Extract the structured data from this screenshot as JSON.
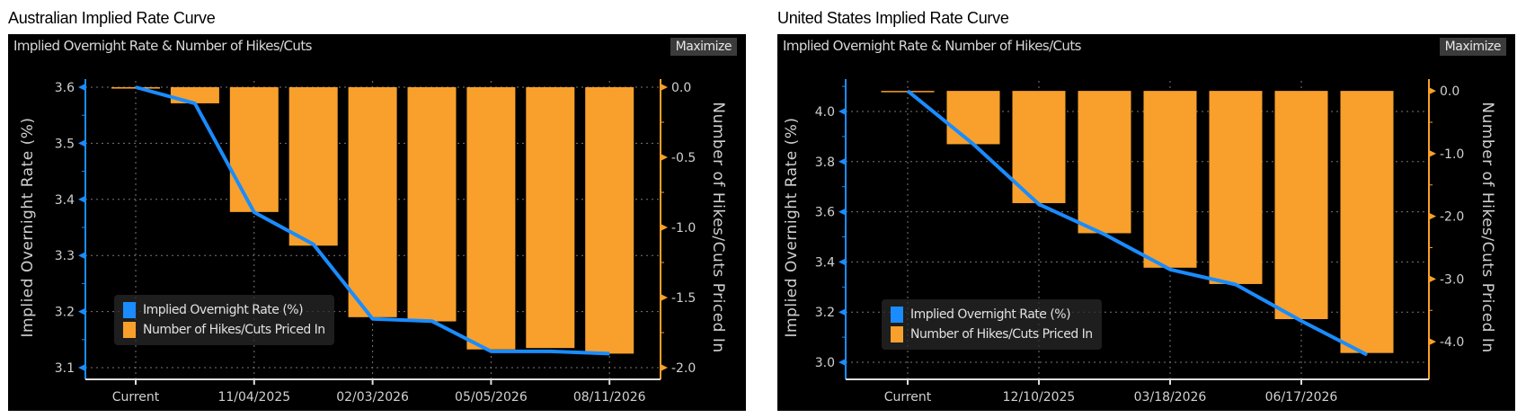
{
  "chart_data": [
    {
      "type": "bar+line",
      "title": "Australian Implied Rate Curve",
      "subtitle": "Implied Overnight Rate & Number of Hikes/Cuts",
      "maximize_label": "Maximize",
      "ylabel": "Implied Overnight Rate (%)",
      "y2label": "Number of Hikes/Cuts Priced In",
      "ylim": [
        3.1,
        3.6
      ],
      "yticks": [
        3.1,
        3.2,
        3.3,
        3.4,
        3.5,
        3.6
      ],
      "y2lim": [
        -2.0,
        0.0
      ],
      "y2ticks": [
        "0.0",
        "-0.5",
        "-1.0",
        "-1.5",
        "-2.0"
      ],
      "categories": [
        "Current",
        "",
        "11/04/2025",
        "",
        "02/03/2026",
        "",
        "05/05/2026",
        "",
        "08/11/2026"
      ],
      "series": [
        {
          "name": "Implied Overnight Rate (%)",
          "type": "line",
          "axis": "left",
          "values": [
            3.6,
            3.571,
            3.377,
            3.32,
            3.187,
            3.183,
            3.129,
            3.129,
            3.125
          ]
        },
        {
          "name": "Number of Hikes/Cuts Priced In",
          "type": "bar",
          "axis": "right",
          "values": [
            -0.01,
            -0.115,
            -0.89,
            -1.13,
            -1.64,
            -1.67,
            -1.87,
            -1.86,
            -1.9
          ]
        }
      ],
      "legend": [
        "Implied Overnight Rate (%)",
        "Number of Hikes/Cuts Priced In"
      ],
      "colors": {
        "line": "#1a8cff",
        "bar": "#f8a02b",
        "axis_left": "#1a8cff",
        "axis_right": "#f8a02b"
      }
    },
    {
      "type": "bar+line",
      "title": "United States Implied Rate Curve",
      "subtitle": "Implied Overnight Rate & Number of Hikes/Cuts",
      "maximize_label": "Maximize",
      "ylabel": "Implied Overnight Rate (%)",
      "y2label": "Number of Hikes/Cuts Priced In",
      "ylim": [
        3.0,
        4.0
      ],
      "yticks": [
        3.0,
        3.2,
        3.4,
        3.6,
        3.8,
        4.0
      ],
      "y2lim": [
        -4.0,
        0.0
      ],
      "y2ticks": [
        "0.0",
        "-1.0",
        "-2.0",
        "-3.0",
        "-4.0"
      ],
      "categories": [
        "Current",
        "",
        "12/10/2025",
        "",
        "03/18/2026",
        "",
        "06/17/2026",
        ""
      ],
      "series": [
        {
          "name": "Implied Overnight Rate (%)",
          "type": "line",
          "axis": "left",
          "values": [
            4.082,
            3.87,
            3.63,
            3.51,
            3.37,
            3.31,
            3.165,
            3.03
          ]
        },
        {
          "name": "Number of Hikes/Cuts Priced In",
          "type": "bar",
          "axis": "right",
          "values": [
            -0.01,
            -0.85,
            -1.79,
            -2.27,
            -2.82,
            -3.08,
            -3.64,
            -4.18
          ]
        }
      ],
      "legend": [
        "Implied Overnight Rate (%)",
        "Number of Hikes/Cuts Priced In"
      ],
      "colors": {
        "line": "#1a8cff",
        "bar": "#f8a02b",
        "axis_left": "#1a8cff",
        "axis_right": "#f8a02b"
      }
    }
  ]
}
